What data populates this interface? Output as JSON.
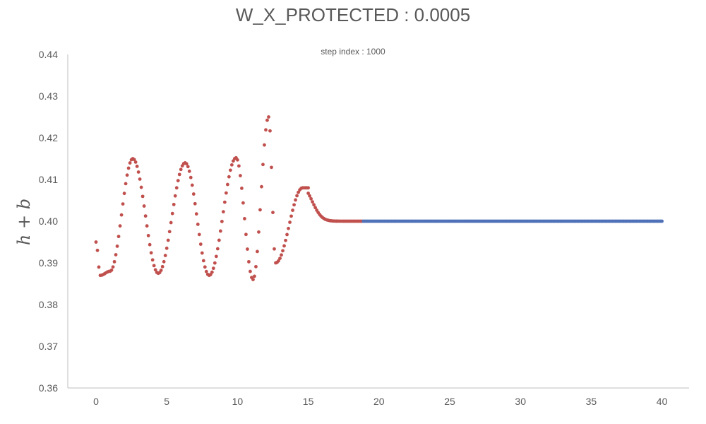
{
  "title": "W_X_PROTECTED : 0.0005",
  "subtitle": "step index : 1000",
  "chart_data": {
    "type": "scatter",
    "title": "W_X_PROTECTED : 0.0005",
    "subtitle": "step index : 1000",
    "xlabel": "",
    "ylabel": "h + b",
    "xlim": [
      -1.5,
      42
    ],
    "ylim": [
      0.36,
      0.44
    ],
    "xticks": [
      "0",
      "5",
      "10",
      "15",
      "20",
      "25",
      "30",
      "35",
      "40"
    ],
    "yticks": [
      "0.36",
      "0.37",
      "0.38",
      "0.39",
      "0.40",
      "0.41",
      "0.42",
      "0.43",
      "0.44"
    ],
    "grid": false,
    "legend": "none",
    "colors": {
      "red": "#c0504d",
      "blue": "#4f71b8",
      "axis": "#bfbfbf",
      "text": "#595959"
    },
    "series": [
      {
        "color": "#c0504d",
        "segments": [
          {
            "x_start": 0.0,
            "x_end": 15.0,
            "step": 0.1,
            "curve": "oscillation",
            "key_points": [
              [
                0.0,
                0.395
              ],
              [
                0.3,
                0.387
              ],
              [
                1.0,
                0.388
              ],
              [
                2.6,
                0.415
              ],
              [
                4.4,
                0.3875
              ],
              [
                6.3,
                0.414
              ],
              [
                8.0,
                0.387
              ],
              [
                9.9,
                0.4152
              ],
              [
                11.1,
                0.386
              ],
              [
                12.2,
                0.425
              ],
              [
                12.7,
                0.39
              ],
              [
                14.6,
                0.408
              ]
            ]
          },
          {
            "x_start": 15.0,
            "x_end": 18.8,
            "step": 0.1,
            "curve": "decay-to-0.400"
          }
        ]
      },
      {
        "color": "#4f71b8",
        "segments": [
          {
            "x_start": 18.9,
            "x_end": 40.0,
            "step": 0.1,
            "value": 0.4
          }
        ]
      }
    ]
  }
}
